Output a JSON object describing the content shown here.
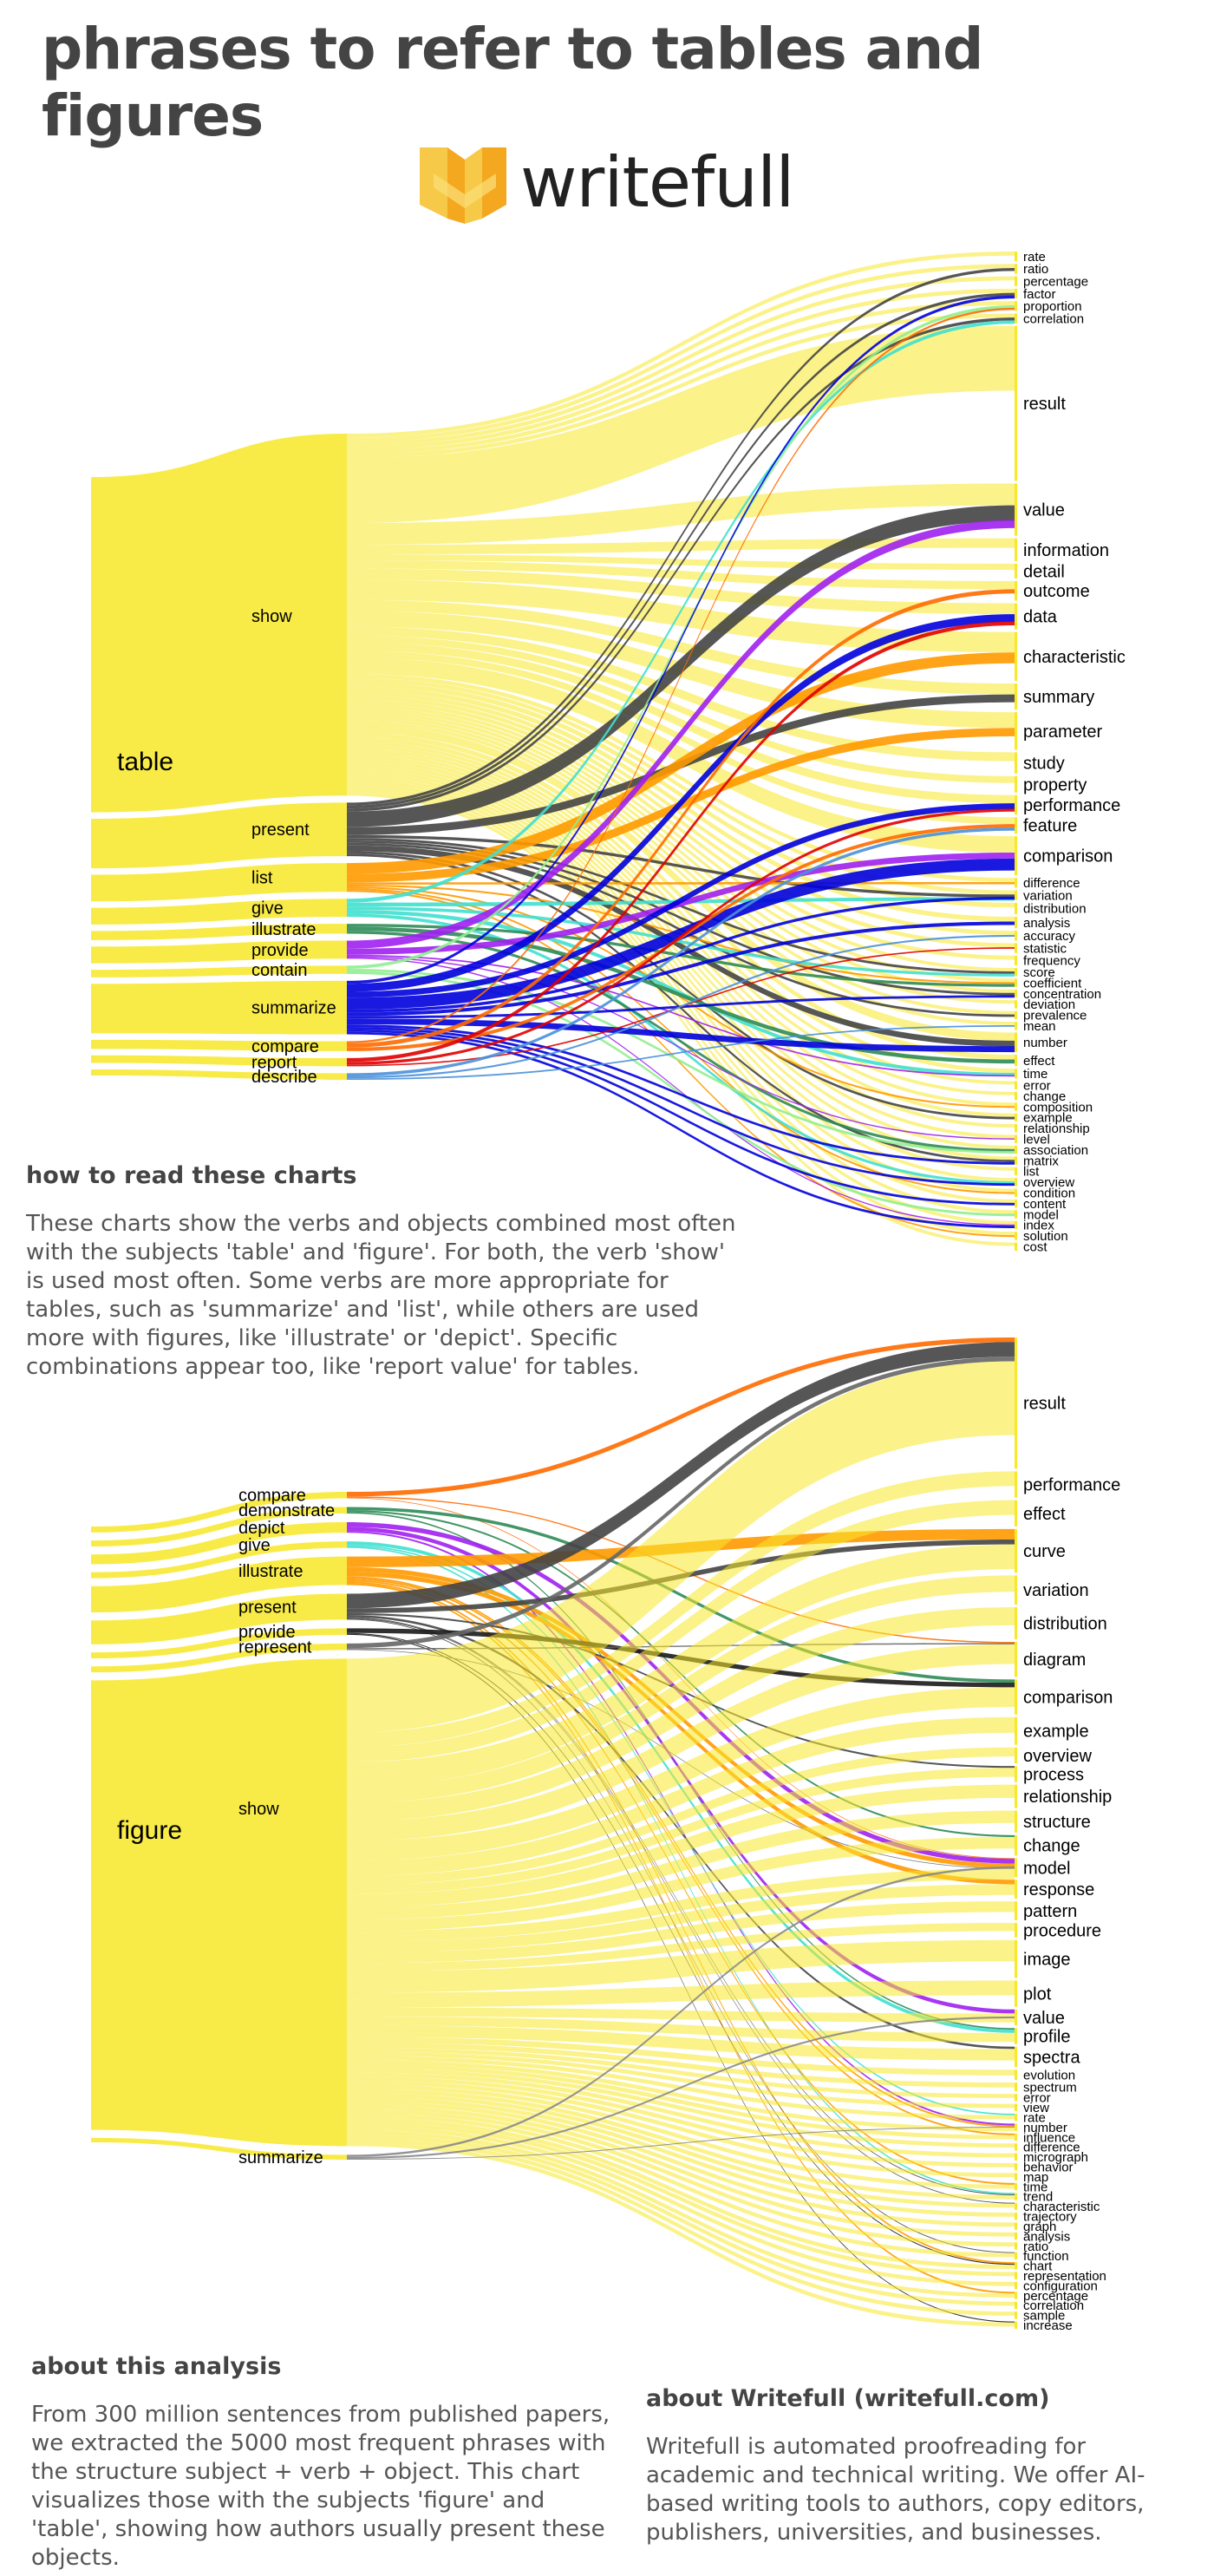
{
  "title": "phrases to refer to tables and figures",
  "logo": {
    "text": "writefull"
  },
  "howto": {
    "title": "how to read these charts",
    "text": "These charts show the verbs and objects combined most often with the subjects 'table' and 'figure'. For both, the verb 'show' is used most often. Some verbs are more appropriate for tables, such as 'summarize' and 'list', while others are used more with figures, like 'illustrate' or 'depict'. Specific combinations appear too, like 'report value' for tables."
  },
  "analysis": {
    "title": "about this analysis",
    "text": "From 300 million sentences from published papers, we extracted the 5000 most frequent phrases with the structure subject + verb + object. This chart visualizes those with the subjects 'figure' and 'table', showing how authors usually present these objects."
  },
  "about": {
    "title": "about Writefull (writefull.com)",
    "text": "Writefull is automated proofreading for academic and technical writing. We offer AI-based writing tools to authors, copy editors, publishers, universities, and businesses."
  },
  "chart_data": [
    {
      "type": "sankey",
      "subject": "table",
      "verbs": [
        {
          "name": "show",
          "weight": 44,
          "color": "#f7e828"
        },
        {
          "name": "present",
          "weight": 6.5,
          "color": "#444444"
        },
        {
          "name": "list",
          "weight": 3.5,
          "color": "#ff9a00"
        },
        {
          "name": "give",
          "weight": 2.2,
          "color": "#40e0d0"
        },
        {
          "name": "illustrate",
          "weight": 1.2,
          "color": "#2e8b57"
        },
        {
          "name": "provide",
          "weight": 2.2,
          "color": "#a020f0"
        },
        {
          "name": "contain",
          "weight": 1.0,
          "color": "#90ee90"
        },
        {
          "name": "summarize",
          "weight": 6.5,
          "color": "#0000dd"
        },
        {
          "name": "compare",
          "weight": 1.2,
          "color": "#ff6a00"
        },
        {
          "name": "report",
          "weight": 1.0,
          "color": "#e00000"
        },
        {
          "name": "describe",
          "weight": 0.8,
          "color": "#4a90d9"
        }
      ],
      "objects": [
        {
          "name": "rate",
          "weight": 0.6
        },
        {
          "name": "ratio",
          "weight": 0.6
        },
        {
          "name": "percentage",
          "weight": 0.6
        },
        {
          "name": "factor",
          "weight": 0.6
        },
        {
          "name": "proportion",
          "weight": 0.6
        },
        {
          "name": "correlation",
          "weight": 0.6
        },
        {
          "name": "result",
          "weight": 9.5,
          "big": true
        },
        {
          "name": "value",
          "weight": 3.2,
          "big": true
        },
        {
          "name": "information",
          "weight": 1.4,
          "big": true
        },
        {
          "name": "detail",
          "weight": 0.9,
          "big": true
        },
        {
          "name": "outcome",
          "weight": 1.2,
          "big": true
        },
        {
          "name": "data",
          "weight": 1.6,
          "big": true
        },
        {
          "name": "characteristic",
          "weight": 3.0,
          "big": true
        },
        {
          "name": "summary",
          "weight": 1.6,
          "big": true
        },
        {
          "name": "parameter",
          "weight": 2.3,
          "big": true
        },
        {
          "name": "study",
          "weight": 1.3,
          "big": true
        },
        {
          "name": "property",
          "weight": 1.0,
          "big": true
        },
        {
          "name": "performance",
          "weight": 1.2,
          "big": true
        },
        {
          "name": "feature",
          "weight": 1.0,
          "big": true
        },
        {
          "name": "comparison",
          "weight": 2.4,
          "big": true
        },
        {
          "name": "difference",
          "weight": 0.6
        },
        {
          "name": "variation",
          "weight": 0.6
        },
        {
          "name": "distribution",
          "weight": 0.7
        },
        {
          "name": "analysis",
          "weight": 0.7
        },
        {
          "name": "accuracy",
          "weight": 0.6
        },
        {
          "name": "statistic",
          "weight": 0.6
        },
        {
          "name": "frequency",
          "weight": 0.6
        },
        {
          "name": "score",
          "weight": 0.5
        },
        {
          "name": "coefficient",
          "weight": 0.5
        },
        {
          "name": "concentration",
          "weight": 0.5
        },
        {
          "name": "deviation",
          "weight": 0.5
        },
        {
          "name": "prevalence",
          "weight": 0.5
        },
        {
          "name": "mean",
          "weight": 0.5
        },
        {
          "name": "number",
          "weight": 1.2
        },
        {
          "name": "effect",
          "weight": 0.7
        },
        {
          "name": "time",
          "weight": 0.6
        },
        {
          "name": "error",
          "weight": 0.5
        },
        {
          "name": "change",
          "weight": 0.5
        },
        {
          "name": "composition",
          "weight": 0.5
        },
        {
          "name": "example",
          "weight": 0.5
        },
        {
          "name": "relationship",
          "weight": 0.5
        },
        {
          "name": "level",
          "weight": 0.5
        },
        {
          "name": "association",
          "weight": 0.5
        },
        {
          "name": "matrix",
          "weight": 0.5
        },
        {
          "name": "list",
          "weight": 0.5
        },
        {
          "name": "overview",
          "weight": 0.5
        },
        {
          "name": "condition",
          "weight": 0.5
        },
        {
          "name": "content",
          "weight": 0.5
        },
        {
          "name": "model",
          "weight": 0.5
        },
        {
          "name": "index",
          "weight": 0.5
        },
        {
          "name": "solution",
          "weight": 0.5
        },
        {
          "name": "cost",
          "weight": 0.5
        }
      ]
    },
    {
      "type": "sankey",
      "subject": "figure",
      "verbs": [
        {
          "name": "compare",
          "weight": 0.8,
          "color": "#ff6a00"
        },
        {
          "name": "demonstrate",
          "weight": 0.8,
          "color": "#2e8b57"
        },
        {
          "name": "depict",
          "weight": 1.3,
          "color": "#a020f0"
        },
        {
          "name": "give",
          "weight": 0.8,
          "color": "#40e0d0"
        },
        {
          "name": "illustrate",
          "weight": 3.5,
          "color": "#ff9a00"
        },
        {
          "name": "present",
          "weight": 3.2,
          "color": "#444444"
        },
        {
          "name": "provide",
          "weight": 0.8,
          "color": "#1a1a1a"
        },
        {
          "name": "represent",
          "weight": 0.8,
          "color": "#666666"
        },
        {
          "name": "show",
          "weight": 60,
          "color": "#f7e828"
        },
        {
          "name": "summarize",
          "weight": 0.6,
          "color": "#888888"
        }
      ],
      "objects": [
        {
          "name": "result",
          "weight": 9,
          "big": true
        },
        {
          "name": "performance",
          "weight": 1.8,
          "big": true
        },
        {
          "name": "effect",
          "weight": 1.8,
          "big": true
        },
        {
          "name": "curve",
          "weight": 3.0,
          "big": true
        },
        {
          "name": "variation",
          "weight": 2.0,
          "big": true
        },
        {
          "name": "distribution",
          "weight": 2.2,
          "big": true
        },
        {
          "name": "diagram",
          "weight": 2.4,
          "big": true
        },
        {
          "name": "comparison",
          "weight": 2.4,
          "big": true
        },
        {
          "name": "example",
          "weight": 1.9,
          "big": true
        },
        {
          "name": "overview",
          "weight": 1.1,
          "big": true
        },
        {
          "name": "process",
          "weight": 1.1,
          "big": true
        },
        {
          "name": "relationship",
          "weight": 1.6,
          "big": true
        },
        {
          "name": "structure",
          "weight": 1.5,
          "big": true
        },
        {
          "name": "change",
          "weight": 1.4,
          "big": true
        },
        {
          "name": "model",
          "weight": 1.3,
          "big": true
        },
        {
          "name": "response",
          "weight": 1.3,
          "big": true
        },
        {
          "name": "pattern",
          "weight": 1.3,
          "big": true
        },
        {
          "name": "procedure",
          "weight": 1.0,
          "big": true
        },
        {
          "name": "image",
          "weight": 2.6,
          "big": true
        },
        {
          "name": "plot",
          "weight": 1.8,
          "big": true
        },
        {
          "name": "value",
          "weight": 1.1,
          "big": true
        },
        {
          "name": "profile",
          "weight": 1.1,
          "big": true
        },
        {
          "name": "spectra",
          "weight": 1.4,
          "big": true
        },
        {
          "name": "evolution",
          "weight": 0.7
        },
        {
          "name": "spectrum",
          "weight": 0.6
        },
        {
          "name": "error",
          "weight": 0.5
        },
        {
          "name": "view",
          "weight": 0.5
        },
        {
          "name": "rate",
          "weight": 0.5
        },
        {
          "name": "number",
          "weight": 0.5
        },
        {
          "name": "influence",
          "weight": 0.5
        },
        {
          "name": "difference",
          "weight": 0.5
        },
        {
          "name": "micrograph",
          "weight": 0.5
        },
        {
          "name": "behavior",
          "weight": 0.5
        },
        {
          "name": "map",
          "weight": 0.5
        },
        {
          "name": "time",
          "weight": 0.5
        },
        {
          "name": "trend",
          "weight": 0.5
        },
        {
          "name": "characteristic",
          "weight": 0.5
        },
        {
          "name": "trajectory",
          "weight": 0.5
        },
        {
          "name": "graph",
          "weight": 0.5
        },
        {
          "name": "analysis",
          "weight": 0.5
        },
        {
          "name": "ratio",
          "weight": 0.5
        },
        {
          "name": "function",
          "weight": 0.5
        },
        {
          "name": "chart",
          "weight": 0.5
        },
        {
          "name": "representation",
          "weight": 0.5
        },
        {
          "name": "configuration",
          "weight": 0.5
        },
        {
          "name": "percentage",
          "weight": 0.5
        },
        {
          "name": "correlation",
          "weight": 0.5
        },
        {
          "name": "sample",
          "weight": 0.5
        },
        {
          "name": "increase",
          "weight": 0.5
        }
      ]
    }
  ]
}
